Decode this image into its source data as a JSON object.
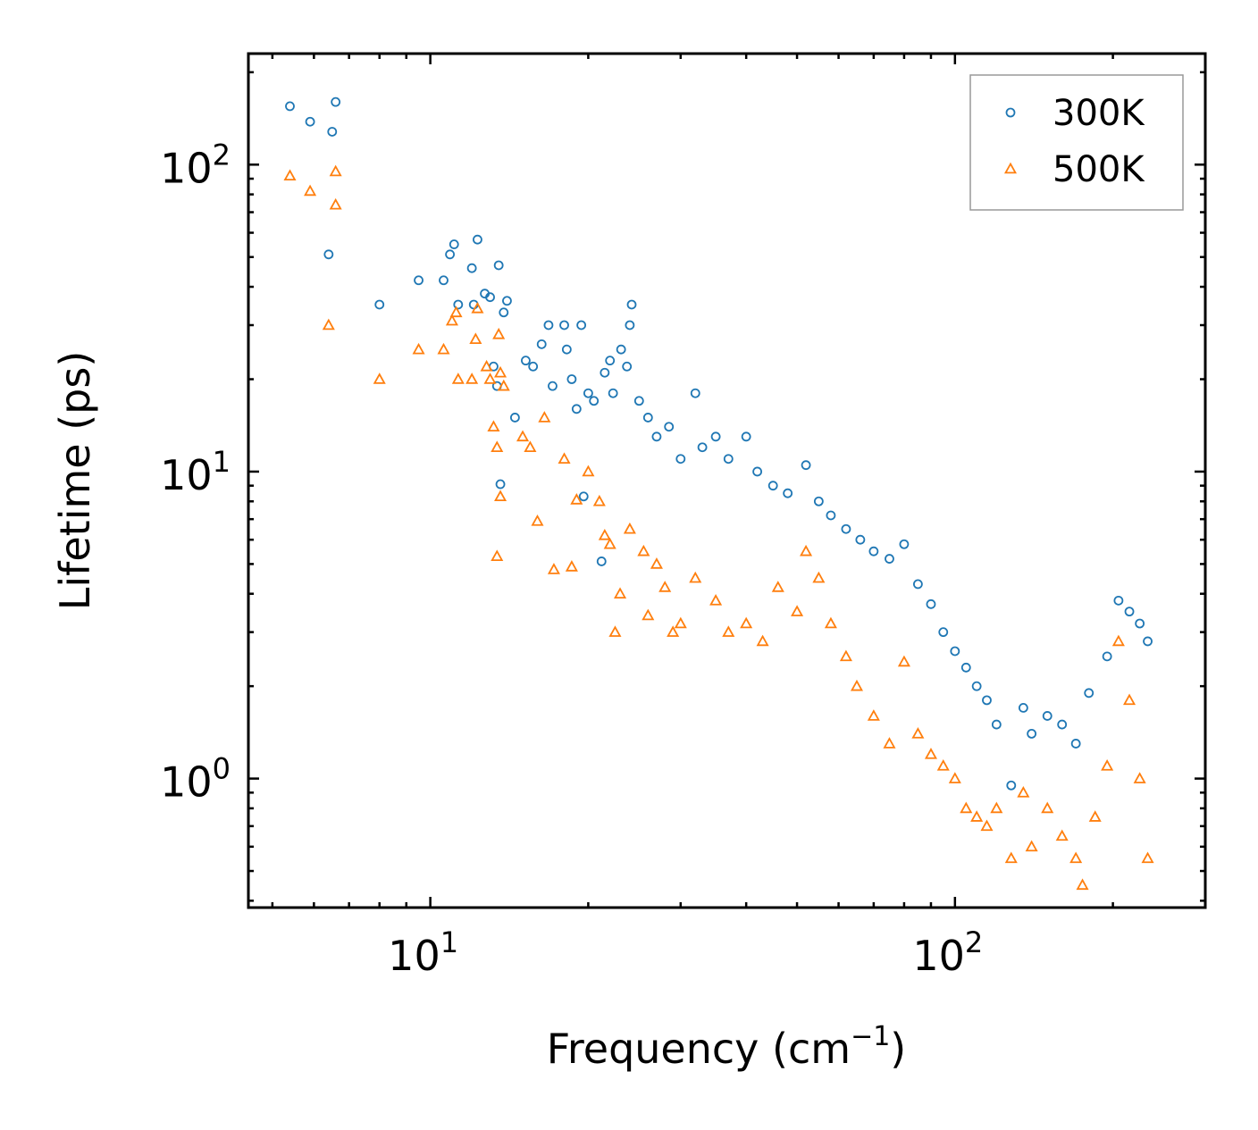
{
  "chart_data": {
    "type": "scatter",
    "title": "",
    "xlabel": "Frequency (cm",
    "xlabel_sup": "−1",
    "xlabel_tail": ")",
    "ylabel": "Lifetime (ps)",
    "xscale": "log",
    "yscale": "log",
    "xlim": [
      4.5,
      300
    ],
    "ylim": [
      0.38,
      230
    ],
    "x_ticks": [
      {
        "value": 10,
        "base": "10",
        "exp": "1"
      },
      {
        "value": 100,
        "base": "10",
        "exp": "2"
      }
    ],
    "y_ticks": [
      {
        "value": 1,
        "base": "10",
        "exp": "0"
      },
      {
        "value": 10,
        "base": "10",
        "exp": "1"
      },
      {
        "value": 100,
        "base": "10",
        "exp": "2"
      }
    ],
    "legend_position": "top-right",
    "series": [
      {
        "name": "300K",
        "marker": "circle",
        "color": "#1f77b4",
        "points": [
          [
            5.4,
            155
          ],
          [
            5.9,
            138
          ],
          [
            6.5,
            128
          ],
          [
            6.6,
            160
          ],
          [
            6.4,
            51
          ],
          [
            8.0,
            35
          ],
          [
            9.5,
            42
          ],
          [
            10.6,
            42
          ],
          [
            10.9,
            51
          ],
          [
            11.1,
            55
          ],
          [
            11.3,
            35
          ],
          [
            12.0,
            46
          ],
          [
            12.3,
            57
          ],
          [
            12.1,
            35
          ],
          [
            12.7,
            38
          ],
          [
            13.0,
            37
          ],
          [
            13.5,
            47
          ],
          [
            13.8,
            33
          ],
          [
            14.0,
            36
          ],
          [
            13.2,
            22
          ],
          [
            13.4,
            19
          ],
          [
            14.5,
            15
          ],
          [
            15.2,
            23
          ],
          [
            15.7,
            22
          ],
          [
            16.3,
            26
          ],
          [
            16.8,
            30
          ],
          [
            17.1,
            19
          ],
          [
            18.0,
            30
          ],
          [
            18.2,
            25
          ],
          [
            18.6,
            20
          ],
          [
            19.0,
            16
          ],
          [
            19.4,
            30
          ],
          [
            20.0,
            18
          ],
          [
            20.5,
            17
          ],
          [
            21.5,
            21
          ],
          [
            22.0,
            23
          ],
          [
            22.3,
            18
          ],
          [
            23.1,
            25
          ],
          [
            23.7,
            22
          ],
          [
            24.0,
            30
          ],
          [
            24.2,
            35
          ],
          [
            19.6,
            8.3
          ],
          [
            21.2,
            5.1
          ],
          [
            13.6,
            9.1
          ],
          [
            25.0,
            17
          ],
          [
            26.0,
            15
          ],
          [
            27.0,
            13
          ],
          [
            28.5,
            14
          ],
          [
            30.0,
            11
          ],
          [
            32.0,
            18
          ],
          [
            33.0,
            12
          ],
          [
            35.0,
            13
          ],
          [
            37.0,
            11
          ],
          [
            40.0,
            13
          ],
          [
            42.0,
            10
          ],
          [
            45.0,
            9.0
          ],
          [
            48.0,
            8.5
          ],
          [
            52.0,
            10.5
          ],
          [
            55.0,
            8.0
          ],
          [
            58.0,
            7.2
          ],
          [
            62.0,
            6.5
          ],
          [
            66.0,
            6.0
          ],
          [
            70.0,
            5.5
          ],
          [
            75.0,
            5.2
          ],
          [
            80.0,
            5.8
          ],
          [
            85.0,
            4.3
          ],
          [
            90.0,
            3.7
          ],
          [
            95.0,
            3.0
          ],
          [
            100.0,
            2.6
          ],
          [
            105.0,
            2.3
          ],
          [
            110.0,
            2.0
          ],
          [
            115.0,
            1.8
          ],
          [
            120.0,
            1.5
          ],
          [
            128.0,
            0.95
          ],
          [
            135.0,
            1.7
          ],
          [
            140.0,
            1.4
          ],
          [
            150.0,
            1.6
          ],
          [
            160.0,
            1.5
          ],
          [
            170.0,
            1.3
          ],
          [
            180.0,
            1.9
          ],
          [
            195.0,
            2.5
          ],
          [
            205.0,
            3.8
          ],
          [
            215.0,
            3.5
          ],
          [
            225.0,
            3.2
          ],
          [
            233.0,
            2.8
          ]
        ]
      },
      {
        "name": "500K",
        "marker": "triangle",
        "color": "#ff7f0e",
        "points": [
          [
            5.4,
            92
          ],
          [
            5.9,
            82
          ],
          [
            6.6,
            95
          ],
          [
            6.6,
            74
          ],
          [
            6.4,
            30
          ],
          [
            8.0,
            20
          ],
          [
            9.5,
            25
          ],
          [
            10.6,
            25
          ],
          [
            11.0,
            31
          ],
          [
            11.2,
            33
          ],
          [
            11.3,
            20
          ],
          [
            12.0,
            20
          ],
          [
            12.2,
            27
          ],
          [
            12.3,
            34
          ],
          [
            12.8,
            22
          ],
          [
            13.0,
            20
          ],
          [
            13.5,
            28
          ],
          [
            13.6,
            21
          ],
          [
            13.8,
            19
          ],
          [
            13.2,
            14
          ],
          [
            13.4,
            12
          ],
          [
            13.6,
            8.3
          ],
          [
            13.4,
            5.3
          ],
          [
            15.0,
            13
          ],
          [
            15.5,
            12
          ],
          [
            16.0,
            6.9
          ],
          [
            16.5,
            15
          ],
          [
            17.2,
            4.8
          ],
          [
            18.0,
            11
          ],
          [
            18.6,
            4.9
          ],
          [
            19.0,
            8.1
          ],
          [
            20.0,
            10
          ],
          [
            21.0,
            8.0
          ],
          [
            21.5,
            6.2
          ],
          [
            22.0,
            5.8
          ],
          [
            22.5,
            3.0
          ],
          [
            23.0,
            4.0
          ],
          [
            24.0,
            6.5
          ],
          [
            25.5,
            5.5
          ],
          [
            26.0,
            3.4
          ],
          [
            27.0,
            5.0
          ],
          [
            28.0,
            4.2
          ],
          [
            29.0,
            3.0
          ],
          [
            30.0,
            3.2
          ],
          [
            32.0,
            4.5
          ],
          [
            35.0,
            3.8
          ],
          [
            37.0,
            3.0
          ],
          [
            40.0,
            3.2
          ],
          [
            43.0,
            2.8
          ],
          [
            46.0,
            4.2
          ],
          [
            50.0,
            3.5
          ],
          [
            52.0,
            5.5
          ],
          [
            55.0,
            4.5
          ],
          [
            58.0,
            3.2
          ],
          [
            62.0,
            2.5
          ],
          [
            65.0,
            2.0
          ],
          [
            70.0,
            1.6
          ],
          [
            75.0,
            1.3
          ],
          [
            80.0,
            2.4
          ],
          [
            85.0,
            1.4
          ],
          [
            90.0,
            1.2
          ],
          [
            95.0,
            1.1
          ],
          [
            100.0,
            1.0
          ],
          [
            105.0,
            0.8
          ],
          [
            110.0,
            0.75
          ],
          [
            115.0,
            0.7
          ],
          [
            120.0,
            0.8
          ],
          [
            128.0,
            0.55
          ],
          [
            135.0,
            0.9
          ],
          [
            140.0,
            0.6
          ],
          [
            150.0,
            0.8
          ],
          [
            160.0,
            0.65
          ],
          [
            170.0,
            0.55
          ],
          [
            175.0,
            0.45
          ],
          [
            185.0,
            0.75
          ],
          [
            195.0,
            1.1
          ],
          [
            205.0,
            2.8
          ],
          [
            215.0,
            1.8
          ],
          [
            225.0,
            1.0
          ],
          [
            233.0,
            0.55
          ]
        ]
      }
    ]
  }
}
